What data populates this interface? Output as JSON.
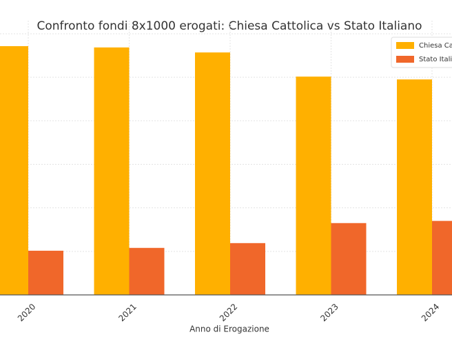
{
  "chart_data": {
    "type": "bar",
    "title": "Confronto fondi 8x1000 erogati: Chiesa Cattolica vs Stato Italiano",
    "x_label": "Anno di Erogazione",
    "categories": [
      "2020",
      "2021",
      "2022",
      "2023",
      "2024"
    ],
    "series": [
      {
        "name": "Chiesa Cattolica",
        "color": "#ffb000",
        "values": [
          1143,
          1137,
          1114,
          1003,
          990
        ]
      },
      {
        "name": "Stato Italiano",
        "color": "#f0672a",
        "values": [
          203,
          216,
          238,
          330,
          340
        ]
      }
    ],
    "ylim": [
      0,
      1260
    ],
    "yticks": [
      0,
      200,
      400,
      600,
      800,
      1000,
      1200
    ],
    "grid": true,
    "legend": "upper right"
  }
}
